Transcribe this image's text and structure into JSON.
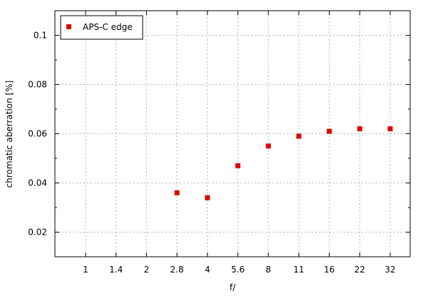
{
  "chart_data": {
    "type": "scatter",
    "title": "",
    "xlabel": "f/",
    "ylabel": "chromatic aberration [%]",
    "x_axis": {
      "scale": "categorical-aperture",
      "tick_labels": [
        "1",
        "1.4",
        "2",
        "2.8",
        "4",
        "5.6",
        "8",
        "11",
        "16",
        "22",
        "32"
      ]
    },
    "y_axis": {
      "ylim": [
        0.01,
        0.11
      ],
      "ticks": [
        0.02,
        0.04,
        0.06,
        0.08,
        0.1
      ],
      "tick_labels": [
        "0.02",
        "0.04",
        "0.06",
        "0.08",
        "0.1"
      ]
    },
    "grid": true,
    "legend_position": "top-left",
    "series": [
      {
        "name": "APS-C edge",
        "color": "#e00000",
        "marker": "square",
        "x": [
          "2.8",
          "4",
          "5.6",
          "8",
          "11",
          "16",
          "22",
          "32"
        ],
        "y": [
          0.036,
          0.034,
          0.047,
          0.055,
          0.059,
          0.061,
          0.062,
          0.062
        ]
      }
    ]
  }
}
